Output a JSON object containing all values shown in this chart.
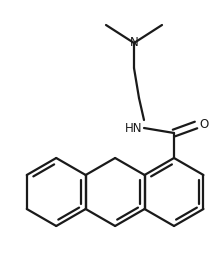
{
  "bg_color": "#ffffff",
  "line_color": "#1a1a1a",
  "line_width": 1.6,
  "font_size": 8.5,
  "figsize": [
    2.19,
    2.67
  ],
  "dpi": 100,
  "xlim": [
    0,
    219
  ],
  "ylim": [
    0,
    267
  ]
}
